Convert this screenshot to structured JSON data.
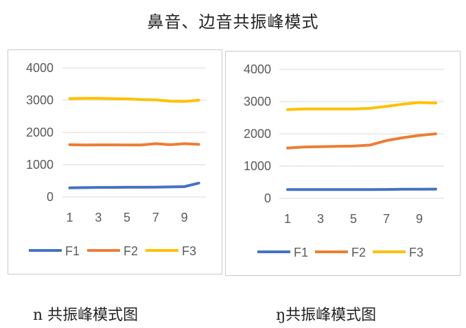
{
  "title": "鼻音、边音共振峰模式",
  "colors": {
    "F1": "#4472c4",
    "F2": "#ed7d31",
    "F3": "#ffc000"
  },
  "chart_data": [
    {
      "type": "line",
      "title": "",
      "caption": "n 共振峰模式图",
      "x": [
        1,
        2,
        3,
        4,
        5,
        6,
        7,
        8,
        9,
        10
      ],
      "x_ticks": [
        "1",
        "3",
        "5",
        "7",
        "9"
      ],
      "y_ticks": [
        "0",
        "1000",
        "2000",
        "3000",
        "4000"
      ],
      "ylim": [
        0,
        4000
      ],
      "grid": true,
      "legend": "bottom",
      "series": [
        {
          "name": "F1",
          "values": [
            280,
            290,
            295,
            295,
            300,
            300,
            305,
            310,
            320,
            430
          ]
        },
        {
          "name": "F2",
          "values": [
            1620,
            1610,
            1615,
            1615,
            1610,
            1610,
            1650,
            1620,
            1650,
            1630
          ]
        },
        {
          "name": "F3",
          "values": [
            3050,
            3060,
            3060,
            3050,
            3040,
            3020,
            3010,
            2970,
            2960,
            3000
          ]
        }
      ]
    },
    {
      "type": "line",
      "title": "",
      "caption": "ŋ共振峰模式图",
      "x": [
        1,
        2,
        3,
        4,
        5,
        6,
        7,
        8,
        9,
        10
      ],
      "x_ticks": [
        "1",
        "3",
        "5",
        "7",
        "9"
      ],
      "y_ticks": [
        "0",
        "1000",
        "2000",
        "3000",
        "4000"
      ],
      "ylim": [
        0,
        4000
      ],
      "grid": true,
      "legend": "bottom",
      "series": [
        {
          "name": "F1",
          "values": [
            270,
            270,
            270,
            270,
            270,
            270,
            275,
            280,
            280,
            285
          ]
        },
        {
          "name": "F2",
          "values": [
            1560,
            1590,
            1600,
            1610,
            1620,
            1650,
            1790,
            1880,
            1950,
            2000
          ]
        },
        {
          "name": "F3",
          "values": [
            2750,
            2770,
            2770,
            2770,
            2770,
            2790,
            2850,
            2920,
            2970,
            2950
          ]
        }
      ]
    }
  ]
}
